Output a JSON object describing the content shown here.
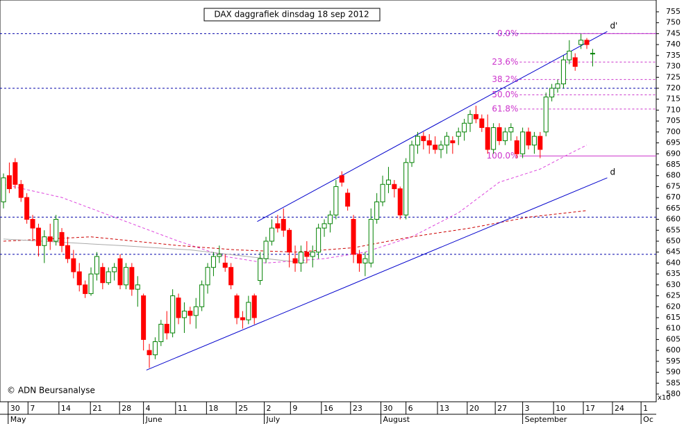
{
  "chart_data": {
    "type": "candlestick",
    "title": "DAX daggrafiek dinsdag 18 sep 2012",
    "credit": "© ADN Beursanalyse",
    "scale_note": "x10",
    "up_color": "#008000",
    "down_color": "#ff0000",
    "open": [
      668,
      680,
      686,
      676,
      670,
      660,
      656,
      648,
      652,
      650,
      654,
      648,
      642,
      636,
      630,
      626,
      635,
      638,
      631,
      636,
      642,
      630,
      638,
      628,
      625,
      600,
      598,
      604,
      612,
      608,
      624,
      615,
      618,
      616,
      620,
      630,
      638,
      643,
      640,
      638,
      625,
      615,
      614,
      625,
      632,
      642,
      650,
      658,
      660,
      655,
      642,
      640,
      645,
      643,
      645,
      656,
      658,
      662,
      680,
      672,
      660,
      644,
      640,
      640,
      660,
      668,
      676,
      676,
      674,
      662,
      686,
      694,
      698,
      696,
      694,
      692,
      694,
      696,
      698,
      700,
      704,
      708,
      706,
      702,
      692,
      702,
      696,
      700,
      696,
      690,
      700,
      694,
      698,
      700,
      716,
      720,
      722,
      733,
      734,
      740,
      742,
      736
    ],
    "high": [
      681,
      686,
      688,
      678,
      672,
      662,
      658,
      655,
      658,
      662,
      656,
      652,
      646,
      640,
      632,
      638,
      645,
      640,
      638,
      640,
      644,
      640,
      640,
      634,
      626,
      603,
      606,
      614,
      618,
      628,
      626,
      622,
      620,
      624,
      632,
      640,
      645,
      648,
      644,
      640,
      626,
      618,
      625,
      626,
      645,
      652,
      660,
      662,
      665,
      656,
      648,
      648,
      650,
      648,
      658,
      660,
      664,
      678,
      682,
      674,
      662,
      646,
      645,
      665,
      672,
      680,
      684,
      678,
      675,
      688,
      696,
      700,
      700,
      699,
      698,
      696,
      700,
      698,
      702,
      706,
      710,
      712,
      708,
      708,
      704,
      704,
      702,
      704,
      698,
      702,
      702,
      700,
      700,
      718,
      722,
      724,
      735,
      742,
      736,
      745,
      743,
      738
    ],
    "low": [
      665,
      672,
      674,
      668,
      658,
      650,
      643,
      640,
      646,
      648,
      645,
      640,
      633,
      627,
      624,
      625,
      632,
      628,
      630,
      632,
      628,
      628,
      625,
      620,
      600,
      592,
      596,
      602,
      605,
      606,
      612,
      608,
      612,
      610,
      618,
      626,
      634,
      640,
      636,
      628,
      612,
      610,
      612,
      612,
      630,
      640,
      648,
      654,
      652,
      638,
      636,
      636,
      640,
      638,
      642,
      652,
      654,
      660,
      675,
      664,
      640,
      636,
      634,
      638,
      658,
      666,
      672,
      670,
      660,
      660,
      684,
      690,
      692,
      690,
      690,
      688,
      690,
      690,
      694,
      696,
      700,
      704,
      700,
      690,
      690,
      694,
      694,
      696,
      688,
      688,
      692,
      690,
      688,
      698,
      714,
      718,
      720,
      731,
      728,
      738,
      738,
      730
    ],
    "close": [
      679,
      674,
      676,
      670,
      660,
      656,
      648,
      652,
      650,
      660,
      648,
      642,
      636,
      630,
      626,
      635,
      643,
      631,
      636,
      638,
      630,
      638,
      628,
      630,
      605,
      598,
      604,
      612,
      608,
      625,
      615,
      618,
      616,
      620,
      630,
      638,
      643,
      644,
      638,
      630,
      615,
      614,
      622,
      615,
      642,
      650,
      656,
      656,
      655,
      645,
      640,
      645,
      643,
      645,
      656,
      658,
      662,
      675,
      677,
      666,
      644,
      640,
      642,
      660,
      668,
      676,
      678,
      674,
      662,
      686,
      694,
      698,
      696,
      694,
      692,
      694,
      698,
      695,
      700,
      704,
      708,
      706,
      702,
      692,
      702,
      696,
      700,
      702,
      690,
      700,
      694,
      698,
      692,
      716,
      720,
      722,
      733,
      737,
      730,
      742,
      740,
      736
    ],
    "xlim": [
      -0.6,
      111.9
    ],
    "ylim": [
      576.5,
      760.4
    ],
    "yticks": [
      580,
      585,
      590,
      595,
      600,
      605,
      610,
      615,
      620,
      625,
      630,
      635,
      640,
      645,
      650,
      655,
      660,
      665,
      670,
      675,
      680,
      685,
      690,
      695,
      700,
      705,
      710,
      715,
      720,
      725,
      730,
      735,
      740,
      745,
      750,
      755
    ],
    "xticks": [
      {
        "value": 0.8,
        "label": "30"
      },
      {
        "value": 4.2,
        "label": "7"
      },
      {
        "value": 9.5,
        "label": "14"
      },
      {
        "value": 14.9,
        "label": "21"
      },
      {
        "value": 19.9,
        "label": "28"
      },
      {
        "value": 24,
        "label": "4"
      },
      {
        "value": 29.5,
        "label": "11"
      },
      {
        "value": 34.8,
        "label": "18"
      },
      {
        "value": 39.9,
        "label": "25"
      },
      {
        "value": 44.7,
        "label": "2"
      },
      {
        "value": 49.2,
        "label": "9"
      },
      {
        "value": 54.5,
        "label": "16"
      },
      {
        "value": 59.5,
        "label": "23"
      },
      {
        "value": 64.7,
        "label": "30"
      },
      {
        "value": 69,
        "label": "6"
      },
      {
        "value": 74.4,
        "label": "13"
      },
      {
        "value": 79.5,
        "label": "20"
      },
      {
        "value": 84.3,
        "label": "27"
      },
      {
        "value": 89,
        "label": "3"
      },
      {
        "value": 94.3,
        "label": "10"
      },
      {
        "value": 99.4,
        "label": "17"
      },
      {
        "value": 104.4,
        "label": "24"
      },
      {
        "value": 109.3,
        "label": "1"
      }
    ],
    "months": [
      {
        "value": 0.8,
        "label": "May"
      },
      {
        "value": 24,
        "label": "June"
      },
      {
        "value": 44.7,
        "label": "July"
      },
      {
        "value": 64.7,
        "label": "August"
      },
      {
        "value": 89,
        "label": "September"
      },
      {
        "value": 109.3,
        "label": "Oc"
      }
    ],
    "levels": [
      745,
      720,
      661,
      644
    ],
    "fib_start": 88.5,
    "fib": [
      {
        "value": 745,
        "label": "0.0%"
      },
      {
        "value": 732,
        "label": "23.6%"
      },
      {
        "value": 724,
        "label": "38.2%"
      },
      {
        "value": 717,
        "label": "50.0%"
      },
      {
        "value": 710.5,
        "label": "61.8%"
      },
      {
        "value": 689,
        "label": "100.0%"
      }
    ],
    "trend_lines": [
      {
        "name": "d",
        "color": "#0000cc",
        "x": [
          24.5,
          103.5
        ],
        "y": [
          591,
          679
        ]
      },
      {
        "name": "d'",
        "color": "#0000cc",
        "x": [
          43.5,
          103.5
        ],
        "y": [
          659,
          746
        ]
      }
    ],
    "averages": [
      {
        "color": "#dd44dd",
        "dash": true,
        "x": [
          0,
          10,
          20,
          30,
          38,
          45,
          55,
          62,
          70,
          78,
          85,
          92,
          97,
          100
        ],
        "y": [
          676,
          670,
          660,
          650,
          643,
          640,
          642,
          645,
          652,
          663,
          677,
          683,
          690,
          694
        ]
      },
      {
        "color": "#cc0000",
        "dash": true,
        "x": [
          0,
          15,
          30,
          40,
          50,
          60,
          70,
          80,
          90,
          100
        ],
        "y": [
          650,
          652,
          648,
          646,
          645,
          647,
          652,
          656,
          661,
          664
        ]
      },
      {
        "color": "#aaaaaa",
        "dash": false,
        "x": [
          0,
          20,
          32,
          45,
          52
        ],
        "y": [
          651,
          648,
          646,
          642,
          640
        ]
      }
    ]
  }
}
